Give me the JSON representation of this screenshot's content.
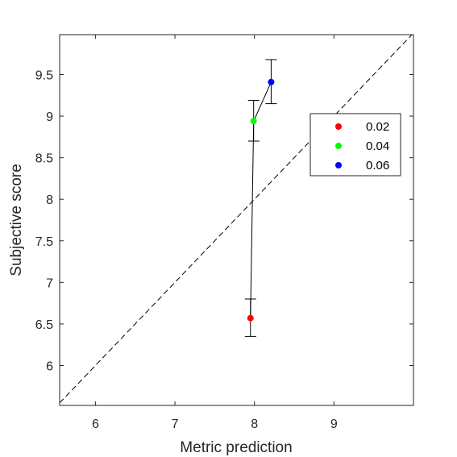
{
  "chart_data": {
    "type": "scatter",
    "xlabel": "Metric prediction",
    "ylabel": "Subjective score",
    "xlim": [
      5.55,
      10.0
    ],
    "ylim": [
      5.52,
      9.98
    ],
    "x_ticks": [
      6,
      7,
      8,
      9
    ],
    "x_tick_labels": [
      "6",
      "7",
      "8",
      "9"
    ],
    "y_ticks": [
      6,
      6.5,
      7,
      7.5,
      8,
      8.5,
      9,
      9.5
    ],
    "y_tick_labels": [
      "6",
      "6.5",
      "7",
      "7.5",
      "8",
      "8.5",
      "9",
      "9.5"
    ],
    "grid": false,
    "legend_position": "right",
    "diagonal_reference": true,
    "points": [
      {
        "label": "0.02",
        "x": 7.95,
        "y": 6.57,
        "err_low": 6.35,
        "err_high": 6.8,
        "color": "#ff0000"
      },
      {
        "label": "0.04",
        "x": 7.99,
        "y": 8.94,
        "err_low": 8.7,
        "err_high": 9.19,
        "color": "#00ff00"
      },
      {
        "label": "0.06",
        "x": 8.21,
        "y": 9.41,
        "err_low": 9.15,
        "err_high": 9.68,
        "color": "#0000ff"
      }
    ]
  }
}
